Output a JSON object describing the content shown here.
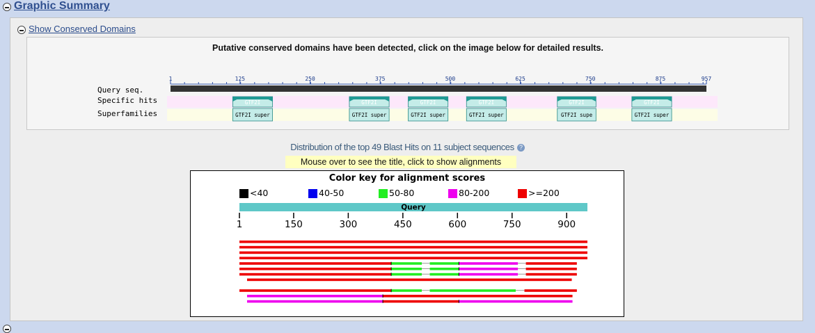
{
  "section": {
    "title": "Graphic Summary"
  },
  "cdd": {
    "toggle_label": "Show Conserved Domains",
    "heading": "Putative conserved domains have been detected, click on the image below for detailed results.",
    "row_labels": [
      "Query seq.",
      "Specific hits",
      "Superfamilies"
    ],
    "ticks": [
      "1",
      "125",
      "250",
      "375",
      "500",
      "625",
      "750",
      "875",
      "957"
    ],
    "query_length": 957,
    "domains": [
      {
        "specific": "GTF2I",
        "superfamily": "GTF2I super",
        "start": 112,
        "end": 183
      },
      {
        "specific": "GTF2I",
        "superfamily": "GTF2I super",
        "start": 320,
        "end": 391
      },
      {
        "specific": "GTF2I",
        "superfamily": "GTF2I super",
        "start": 425,
        "end": 496
      },
      {
        "specific": "GTF2I",
        "superfamily": "GTF2I super",
        "start": 529,
        "end": 600
      },
      {
        "specific": "GTF2I",
        "superfamily": "GTF2I supe",
        "start": 691,
        "end": 760
      },
      {
        "specific": "GTF2I",
        "superfamily": "GTF2I super",
        "start": 824,
        "end": 895
      }
    ],
    "colors": {
      "specific_band": "#fde8fb",
      "superfamily_band": "#fdfde6",
      "domain_fill": "#c4ece8",
      "domain_head": "#1f9a94",
      "query_bar": "#333333"
    }
  },
  "distribution": {
    "title": "Distribution of the top 49 Blast Hits on 11 subject sequences",
    "hint": "Mouse over to see the title, click to show alignments",
    "color_key_title": "Color key for alignment scores",
    "legend": [
      {
        "label": "<40",
        "color": "#000000"
      },
      {
        "label": "40-50",
        "color": "#0000ee"
      },
      {
        "label": "50-80",
        "color": "#22ee22"
      },
      {
        "label": "80-200",
        "color": "#ee00ee"
      },
      {
        "label": ">=200",
        "color": "#ee0000"
      }
    ],
    "query_label": "Query",
    "query_bar_color": "#5fc8c8",
    "scale_ticks": [
      "1",
      "150",
      "300",
      "450",
      "600",
      "750",
      "900"
    ],
    "hits": [
      [
        {
          "s": 1,
          "e": 957,
          "c": "#ee0000"
        }
      ],
      [
        {
          "s": 1,
          "e": 957,
          "c": "#ee0000"
        }
      ],
      [
        {
          "s": 1,
          "e": 957,
          "c": "#ee0000"
        }
      ],
      [
        {
          "s": 1,
          "e": 957,
          "c": "#ee0000"
        }
      ],
      [
        {
          "s": 1,
          "e": 418,
          "c": "#ee0000"
        },
        {
          "s": 418,
          "e": 502,
          "c": "#22ee22"
        },
        {
          "s": 502,
          "e": 524,
          "c": "gap"
        },
        {
          "s": 524,
          "e": 604,
          "c": "#22ee22"
        },
        {
          "s": 604,
          "e": 766,
          "c": "#ee00ee"
        },
        {
          "s": 766,
          "e": 788,
          "c": "gap"
        },
        {
          "s": 788,
          "e": 928,
          "c": "#ee0000"
        }
      ],
      [
        {
          "s": 1,
          "e": 418,
          "c": "#ee0000"
        },
        {
          "s": 418,
          "e": 502,
          "c": "#22ee22"
        },
        {
          "s": 502,
          "e": 524,
          "c": "gap"
        },
        {
          "s": 524,
          "e": 604,
          "c": "#22ee22"
        },
        {
          "s": 604,
          "e": 766,
          "c": "#ee00ee"
        },
        {
          "s": 766,
          "e": 788,
          "c": "gap"
        },
        {
          "s": 788,
          "e": 928,
          "c": "#ee0000"
        }
      ],
      [
        {
          "s": 1,
          "e": 418,
          "c": "#ee0000"
        },
        {
          "s": 418,
          "e": 502,
          "c": "#22ee22"
        },
        {
          "s": 502,
          "e": 524,
          "c": "gap"
        },
        {
          "s": 524,
          "e": 604,
          "c": "#22ee22"
        },
        {
          "s": 604,
          "e": 766,
          "c": "#ee00ee"
        },
        {
          "s": 766,
          "e": 788,
          "c": "gap"
        },
        {
          "s": 788,
          "e": 928,
          "c": "#ee0000"
        }
      ],
      [
        {
          "s": 22,
          "e": 914,
          "c": "#ee0000"
        }
      ],
      [],
      [
        {
          "s": 1,
          "e": 418,
          "c": "#ee0000"
        },
        {
          "s": 418,
          "e": 502,
          "c": "#22ee22"
        },
        {
          "s": 502,
          "e": 524,
          "c": "gap"
        },
        {
          "s": 524,
          "e": 760,
          "c": "#22ee22"
        },
        {
          "s": 760,
          "e": 784,
          "c": "gap"
        },
        {
          "s": 784,
          "e": 928,
          "c": "#ee0000"
        }
      ],
      [
        {
          "s": 22,
          "e": 395,
          "c": "#ee00ee"
        },
        {
          "s": 395,
          "e": 916,
          "c": "#ee0000"
        }
      ],
      [
        {
          "s": 22,
          "e": 395,
          "c": "#ee00ee"
        },
        {
          "s": 395,
          "e": 604,
          "c": "#ee0000"
        },
        {
          "s": 604,
          "e": 916,
          "c": "#ee00ee"
        }
      ]
    ]
  }
}
